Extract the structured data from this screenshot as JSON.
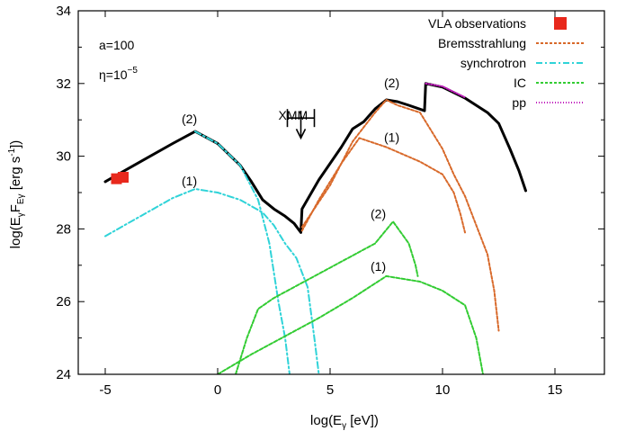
{
  "chart_data": {
    "type": "line",
    "title": "",
    "xlabel": "log(E",
    "xlabel_sub": "γ",
    "xlabel_end": " [eV])",
    "ylabel": "log(E",
    "ylabel_sub1": "γ",
    "ylabel_mid": "F",
    "ylabel_sub2": "Eγ",
    "ylabel_end": " [erg s",
    "ylabel_sup": "-1",
    "ylabel_close": "])",
    "xlim": [
      -6.2,
      17.2
    ],
    "ylim": [
      24,
      34
    ],
    "xticks": [
      -5,
      0,
      5,
      10,
      15
    ],
    "xtick_labels": [
      "-5",
      "0",
      "5",
      "10",
      "15"
    ],
    "yticks": [
      24,
      26,
      28,
      30,
      32,
      34
    ],
    "ytick_labels": [
      "24",
      "26",
      "28",
      "30",
      "32",
      "34"
    ],
    "legend_position": "top-right",
    "params": {
      "a_text": "a=100",
      "eta_text": "η=10",
      "eta_sup": "−5"
    },
    "legend": [
      {
        "label": "VLA observations",
        "color": "#e8281c",
        "style": "square"
      },
      {
        "label": "Bremsstrahlung",
        "color": "#d8692a",
        "style": "dash"
      },
      {
        "label": "synchrotron",
        "color": "#2fd3d8",
        "style": "dashdot"
      },
      {
        "label": "IC",
        "color": "#33cc33",
        "style": "dash"
      },
      {
        "label": "pp",
        "color": "#c01fbd",
        "style": "dot"
      }
    ],
    "annotations": [
      {
        "text": "(2)",
        "x": -1.6,
        "y": 30.9
      },
      {
        "text": "(1)",
        "x": -1.6,
        "y": 29.2
      },
      {
        "text": "(2)",
        "x": 7.4,
        "y": 31.9
      },
      {
        "text": "(1)",
        "x": 7.4,
        "y": 30.4
      },
      {
        "text": "(2)",
        "x": 6.8,
        "y": 28.3
      },
      {
        "text": "(1)",
        "x": 6.8,
        "y": 26.85
      },
      {
        "text": "XMM",
        "x": 2.7,
        "y": 31.0
      }
    ],
    "xmm_limit": {
      "x_from": 3.1,
      "x_to": 4.3,
      "y": 31.05,
      "arrow_to": 30.5
    },
    "vla_points": [
      {
        "x": -4.5,
        "y": 29.38
      },
      {
        "x": -4.2,
        "y": 29.42
      }
    ],
    "series": [
      {
        "name": "total (2)",
        "color": "#000000",
        "dash": "",
        "width": 3,
        "x": [
          -5.0,
          -4.0,
          -3.0,
          -2.0,
          -1.0,
          0.0,
          1.0,
          1.5,
          2.0,
          2.5,
          3.0,
          3.4,
          3.7,
          3.75,
          4.5,
          5.5,
          6.0,
          6.5,
          7.0,
          7.5,
          8.0,
          8.5,
          9.2,
          9.25,
          10.0,
          11.0,
          12.0,
          12.5,
          13.0,
          13.4,
          13.7
        ],
        "y": [
          29.3,
          29.65,
          30.0,
          30.35,
          30.68,
          30.35,
          29.75,
          29.3,
          28.8,
          28.55,
          28.35,
          28.15,
          27.9,
          28.55,
          29.35,
          30.25,
          30.75,
          30.95,
          31.3,
          31.55,
          31.5,
          31.4,
          31.25,
          32.0,
          31.9,
          31.6,
          31.2,
          30.9,
          30.2,
          29.6,
          29.05
        ]
      },
      {
        "name": "synchrotron (2)",
        "color": "#2fd3d8",
        "dash": "7,3,2,3",
        "width": 2,
        "x": [
          -1.0,
          0.0,
          1.0,
          1.8,
          2.3,
          2.7,
          3.0,
          3.2
        ],
        "y": [
          30.68,
          30.35,
          29.75,
          28.8,
          27.6,
          26.0,
          25.0,
          24.0
        ]
      },
      {
        "name": "synchrotron (1)",
        "color": "#2fd3d8",
        "dash": "7,3,2,3",
        "width": 2,
        "x": [
          -5.0,
          -4.0,
          -3.0,
          -2.0,
          -1.0,
          0.0,
          1.0,
          2.0,
          2.5,
          3.0,
          3.5,
          4.0,
          4.3,
          4.5
        ],
        "y": [
          27.8,
          28.15,
          28.5,
          28.85,
          29.1,
          29.0,
          28.8,
          28.45,
          28.1,
          27.6,
          27.2,
          26.4,
          25.0,
          24.0
        ]
      },
      {
        "name": "Bremsstrahlung (2)",
        "color": "#d8692a",
        "dash": "3,2",
        "width": 2,
        "x": [
          3.75,
          5.0,
          6.0,
          7.0,
          7.5,
          8.0,
          9.0,
          10.0,
          10.5,
          11.0,
          11.5,
          12.0,
          12.3,
          12.5
        ],
        "y": [
          28.05,
          29.2,
          30.4,
          31.2,
          31.55,
          31.4,
          31.2,
          30.2,
          29.5,
          28.9,
          28.1,
          27.3,
          26.3,
          25.2
        ]
      },
      {
        "name": "Bremsstrahlung (1)",
        "color": "#d8692a",
        "dash": "3,2",
        "width": 2,
        "x": [
          3.75,
          4.5,
          5.5,
          6.3,
          7.5,
          9.0,
          10.0,
          10.5,
          10.8,
          11.0
        ],
        "y": [
          27.95,
          28.8,
          29.8,
          30.5,
          30.25,
          29.85,
          29.5,
          29.0,
          28.4,
          27.9
        ]
      },
      {
        "name": "IC (2)",
        "color": "#33cc33",
        "dash": "4,2",
        "width": 2,
        "x": [
          0.8,
          1.3,
          1.8,
          2.5,
          4.0,
          5.5,
          7.0,
          7.8,
          8.5,
          8.8,
          8.9
        ],
        "y": [
          24.0,
          25.0,
          25.8,
          26.1,
          26.6,
          27.1,
          27.6,
          28.2,
          27.6,
          27.0,
          26.7
        ]
      },
      {
        "name": "IC (1)",
        "color": "#33cc33",
        "dash": "4,2",
        "width": 2,
        "x": [
          0.0,
          1.5,
          3.0,
          4.5,
          6.0,
          7.5,
          9.0,
          10.0,
          11.0,
          11.5,
          11.8
        ],
        "y": [
          24.0,
          24.55,
          25.05,
          25.55,
          26.1,
          26.7,
          26.55,
          26.3,
          25.9,
          25.0,
          24.0
        ]
      },
      {
        "name": "pp",
        "color": "#c01fbd",
        "dash": "1,2",
        "width": 2,
        "x": [
          9.25,
          10.0,
          11.0
        ],
        "y": [
          32.0,
          31.92,
          31.62
        ]
      }
    ]
  }
}
